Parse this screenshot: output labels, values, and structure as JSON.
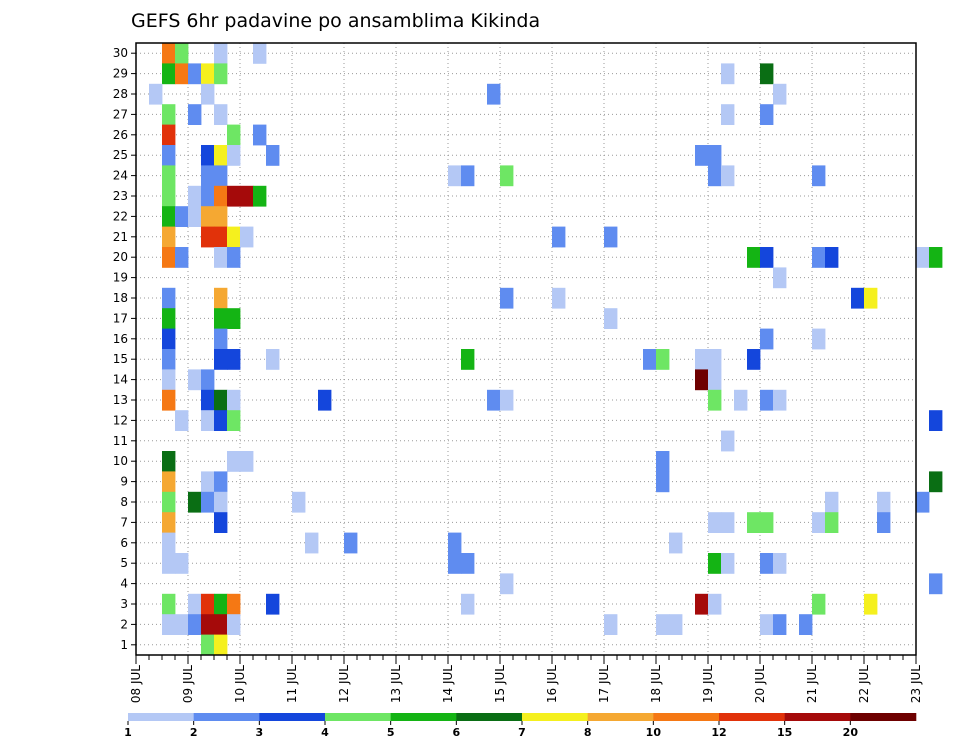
{
  "chart_data": {
    "type": "heatmap",
    "title": "GEFS 6hr padavine po ansamblima Kikinda",
    "xlabel": "",
    "ylabel": "",
    "x_tick_labels": [
      "08 JUL",
      "09 JUL",
      "10 JUL",
      "11 JUL",
      "12 JUL",
      "13 JUL",
      "14 JUL",
      "15 JUL",
      "16 JUL",
      "17 JUL",
      "18 JUL",
      "19 JUL",
      "20 JUL",
      "21 JUL",
      "22 JUL",
      "23 JUL"
    ],
    "y_tick_labels": [
      "1",
      "2",
      "3",
      "4",
      "5",
      "6",
      "7",
      "8",
      "9",
      "10",
      "11",
      "12",
      "13",
      "14",
      "15",
      "16",
      "17",
      "18",
      "19",
      "20",
      "21",
      "22",
      "23",
      "24",
      "25",
      "26",
      "27",
      "28",
      "29",
      "30"
    ],
    "time_steps_per_day": 4,
    "grid": true,
    "legend": {
      "placement": "bottom",
      "levels": [
        "1",
        "2",
        "3",
        "4",
        "5",
        "6",
        "7",
        "8",
        "10",
        "12",
        "15",
        "20"
      ],
      "colors": [
        "#b4c8f5",
        "#5f8cf0",
        "#1446dc",
        "#6ee664",
        "#14b414",
        "#0a6e14",
        "#f5f01e",
        "#f5a832",
        "#f57814",
        "#e1320a",
        "#a50a0a",
        "#6e0000"
      ]
    },
    "cells": [
      {
        "member": 30,
        "step": 2,
        "class": 9
      },
      {
        "member": 30,
        "step": 3,
        "class": 4
      },
      {
        "member": 30,
        "step": 6,
        "class": 1
      },
      {
        "member": 30,
        "step": 9,
        "class": 1
      },
      {
        "member": 29,
        "step": 2,
        "class": 5
      },
      {
        "member": 29,
        "step": 3,
        "class": 9
      },
      {
        "member": 29,
        "step": 4,
        "class": 2
      },
      {
        "member": 29,
        "step": 5,
        "class": 7
      },
      {
        "member": 29,
        "step": 6,
        "class": 4
      },
      {
        "member": 29,
        "step": 45,
        "class": 1
      },
      {
        "member": 29,
        "step": 48,
        "class": 6
      },
      {
        "member": 28,
        "step": 1,
        "class": 1
      },
      {
        "member": 28,
        "step": 5,
        "class": 1
      },
      {
        "member": 28,
        "step": 27,
        "class": 2
      },
      {
        "member": 28,
        "step": 49,
        "class": 1
      },
      {
        "member": 27,
        "step": 2,
        "class": 4
      },
      {
        "member": 27,
        "step": 4,
        "class": 2
      },
      {
        "member": 27,
        "step": 6,
        "class": 1
      },
      {
        "member": 27,
        "step": 45,
        "class": 1
      },
      {
        "member": 27,
        "step": 48,
        "class": 2
      },
      {
        "member": 26,
        "step": 2,
        "class": 10
      },
      {
        "member": 26,
        "step": 7,
        "class": 4
      },
      {
        "member": 26,
        "step": 9,
        "class": 2
      },
      {
        "member": 25,
        "step": 2,
        "class": 2
      },
      {
        "member": 25,
        "step": 5,
        "class": 3
      },
      {
        "member": 25,
        "step": 6,
        "class": 7
      },
      {
        "member": 25,
        "step": 7,
        "class": 1
      },
      {
        "member": 25,
        "step": 10,
        "class": 2
      },
      {
        "member": 25,
        "step": 43,
        "class": 2
      },
      {
        "member": 25,
        "step": 44,
        "class": 2
      },
      {
        "member": 24,
        "step": 2,
        "class": 4
      },
      {
        "member": 24,
        "step": 5,
        "class": 2
      },
      {
        "member": 24,
        "step": 6,
        "class": 2
      },
      {
        "member": 24,
        "step": 24,
        "class": 1
      },
      {
        "member": 24,
        "step": 25,
        "class": 2
      },
      {
        "member": 24,
        "step": 28,
        "class": 4
      },
      {
        "member": 24,
        "step": 44,
        "class": 2
      },
      {
        "member": 24,
        "step": 45,
        "class": 1
      },
      {
        "member": 24,
        "step": 52,
        "class": 2
      },
      {
        "member": 23,
        "step": 2,
        "class": 4
      },
      {
        "member": 23,
        "step": 4,
        "class": 1
      },
      {
        "member": 23,
        "step": 5,
        "class": 2
      },
      {
        "member": 23,
        "step": 6,
        "class": 9
      },
      {
        "member": 23,
        "step": 7,
        "class": 11
      },
      {
        "member": 23,
        "step": 8,
        "class": 11
      },
      {
        "member": 23,
        "step": 9,
        "class": 5
      },
      {
        "member": 22,
        "step": 2,
        "class": 5
      },
      {
        "member": 22,
        "step": 3,
        "class": 2
      },
      {
        "member": 22,
        "step": 4,
        "class": 1
      },
      {
        "member": 22,
        "step": 5,
        "class": 8
      },
      {
        "member": 22,
        "step": 6,
        "class": 8
      },
      {
        "member": 21,
        "step": 2,
        "class": 8
      },
      {
        "member": 21,
        "step": 5,
        "class": 10
      },
      {
        "member": 21,
        "step": 6,
        "class": 10
      },
      {
        "member": 21,
        "step": 7,
        "class": 7
      },
      {
        "member": 21,
        "step": 8,
        "class": 1
      },
      {
        "member": 21,
        "step": 32,
        "class": 2
      },
      {
        "member": 21,
        "step": 36,
        "class": 2
      },
      {
        "member": 20,
        "step": 2,
        "class": 9
      },
      {
        "member": 20,
        "step": 3,
        "class": 2
      },
      {
        "member": 20,
        "step": 6,
        "class": 1
      },
      {
        "member": 20,
        "step": 7,
        "class": 2
      },
      {
        "member": 20,
        "step": 47,
        "class": 5
      },
      {
        "member": 20,
        "step": 48,
        "class": 3
      },
      {
        "member": 20,
        "step": 52,
        "class": 2
      },
      {
        "member": 20,
        "step": 53,
        "class": 3
      },
      {
        "member": 20,
        "step": 60,
        "class": 1
      },
      {
        "member": 20,
        "step": 61,
        "class": 5
      },
      {
        "member": 19,
        "step": 49,
        "class": 1
      },
      {
        "member": 18,
        "step": 2,
        "class": 2
      },
      {
        "member": 18,
        "step": 6,
        "class": 8
      },
      {
        "member": 18,
        "step": 28,
        "class": 2
      },
      {
        "member": 18,
        "step": 32,
        "class": 1
      },
      {
        "member": 18,
        "step": 55,
        "class": 3
      },
      {
        "member": 18,
        "step": 56,
        "class": 7
      },
      {
        "member": 17,
        "step": 2,
        "class": 5
      },
      {
        "member": 17,
        "step": 6,
        "class": 5
      },
      {
        "member": 17,
        "step": 7,
        "class": 5
      },
      {
        "member": 17,
        "step": 36,
        "class": 1
      },
      {
        "member": 16,
        "step": 2,
        "class": 3
      },
      {
        "member": 16,
        "step": 6,
        "class": 2
      },
      {
        "member": 16,
        "step": 48,
        "class": 2
      },
      {
        "member": 16,
        "step": 52,
        "class": 1
      },
      {
        "member": 15,
        "step": 2,
        "class": 2
      },
      {
        "member": 15,
        "step": 6,
        "class": 3
      },
      {
        "member": 15,
        "step": 7,
        "class": 3
      },
      {
        "member": 15,
        "step": 10,
        "class": 1
      },
      {
        "member": 15,
        "step": 25,
        "class": 5
      },
      {
        "member": 15,
        "step": 39,
        "class": 2
      },
      {
        "member": 15,
        "step": 40,
        "class": 4
      },
      {
        "member": 15,
        "step": 43,
        "class": 1
      },
      {
        "member": 15,
        "step": 44,
        "class": 1
      },
      {
        "member": 15,
        "step": 47,
        "class": 3
      },
      {
        "member": 14,
        "step": 2,
        "class": 1
      },
      {
        "member": 14,
        "step": 4,
        "class": 1
      },
      {
        "member": 14,
        "step": 5,
        "class": 2
      },
      {
        "member": 14,
        "step": 43,
        "class": 12
      },
      {
        "member": 14,
        "step": 44,
        "class": 1
      },
      {
        "member": 13,
        "step": 2,
        "class": 9
      },
      {
        "member": 13,
        "step": 5,
        "class": 3
      },
      {
        "member": 13,
        "step": 6,
        "class": 6
      },
      {
        "member": 13,
        "step": 7,
        "class": 1
      },
      {
        "member": 13,
        "step": 14,
        "class": 3
      },
      {
        "member": 13,
        "step": 27,
        "class": 2
      },
      {
        "member": 13,
        "step": 28,
        "class": 1
      },
      {
        "member": 13,
        "step": 44,
        "class": 4
      },
      {
        "member": 13,
        "step": 46,
        "class": 1
      },
      {
        "member": 13,
        "step": 48,
        "class": 2
      },
      {
        "member": 13,
        "step": 49,
        "class": 1
      },
      {
        "member": 12,
        "step": 3,
        "class": 1
      },
      {
        "member": 12,
        "step": 5,
        "class": 1
      },
      {
        "member": 12,
        "step": 6,
        "class": 3
      },
      {
        "member": 12,
        "step": 7,
        "class": 4
      },
      {
        "member": 12,
        "step": 61,
        "class": 3
      },
      {
        "member": 11,
        "step": 45,
        "class": 1
      },
      {
        "member": 10,
        "step": 2,
        "class": 6
      },
      {
        "member": 10,
        "step": 7,
        "class": 1
      },
      {
        "member": 10,
        "step": 8,
        "class": 1
      },
      {
        "member": 10,
        "step": 40,
        "class": 2
      },
      {
        "member": 9,
        "step": 2,
        "class": 8
      },
      {
        "member": 9,
        "step": 5,
        "class": 1
      },
      {
        "member": 9,
        "step": 6,
        "class": 2
      },
      {
        "member": 9,
        "step": 40,
        "class": 2
      },
      {
        "member": 9,
        "step": 61,
        "class": 6
      },
      {
        "member": 8,
        "step": 2,
        "class": 4
      },
      {
        "member": 8,
        "step": 4,
        "class": 6
      },
      {
        "member": 8,
        "step": 5,
        "class": 2
      },
      {
        "member": 8,
        "step": 6,
        "class": 1
      },
      {
        "member": 8,
        "step": 12,
        "class": 1
      },
      {
        "member": 8,
        "step": 53,
        "class": 1
      },
      {
        "member": 8,
        "step": 57,
        "class": 1
      },
      {
        "member": 8,
        "step": 60,
        "class": 2
      },
      {
        "member": 7,
        "step": 2,
        "class": 8
      },
      {
        "member": 7,
        "step": 6,
        "class": 3
      },
      {
        "member": 7,
        "step": 44,
        "class": 1
      },
      {
        "member": 7,
        "step": 45,
        "class": 1
      },
      {
        "member": 7,
        "step": 47,
        "class": 4
      },
      {
        "member": 7,
        "step": 48,
        "class": 4
      },
      {
        "member": 7,
        "step": 52,
        "class": 1
      },
      {
        "member": 7,
        "step": 53,
        "class": 4
      },
      {
        "member": 7,
        "step": 57,
        "class": 2
      },
      {
        "member": 6,
        "step": 2,
        "class": 1
      },
      {
        "member": 6,
        "step": 13,
        "class": 1
      },
      {
        "member": 6,
        "step": 16,
        "class": 2
      },
      {
        "member": 6,
        "step": 24,
        "class": 2
      },
      {
        "member": 6,
        "step": 41,
        "class": 1
      },
      {
        "member": 5,
        "step": 2,
        "class": 1
      },
      {
        "member": 5,
        "step": 3,
        "class": 1
      },
      {
        "member": 5,
        "step": 24,
        "class": 2
      },
      {
        "member": 5,
        "step": 25,
        "class": 2
      },
      {
        "member": 5,
        "step": 44,
        "class": 5
      },
      {
        "member": 5,
        "step": 45,
        "class": 1
      },
      {
        "member": 5,
        "step": 48,
        "class": 2
      },
      {
        "member": 5,
        "step": 49,
        "class": 1
      },
      {
        "member": 4,
        "step": 28,
        "class": 1
      },
      {
        "member": 4,
        "step": 61,
        "class": 2
      },
      {
        "member": 3,
        "step": 2,
        "class": 4
      },
      {
        "member": 3,
        "step": 4,
        "class": 1
      },
      {
        "member": 3,
        "step": 5,
        "class": 10
      },
      {
        "member": 3,
        "step": 6,
        "class": 5
      },
      {
        "member": 3,
        "step": 7,
        "class": 9
      },
      {
        "member": 3,
        "step": 10,
        "class": 3
      },
      {
        "member": 3,
        "step": 25,
        "class": 1
      },
      {
        "member": 3,
        "step": 43,
        "class": 11
      },
      {
        "member": 3,
        "step": 44,
        "class": 1
      },
      {
        "member": 3,
        "step": 52,
        "class": 4
      },
      {
        "member": 3,
        "step": 56,
        "class": 7
      },
      {
        "member": 2,
        "step": 2,
        "class": 1
      },
      {
        "member": 2,
        "step": 3,
        "class": 1
      },
      {
        "member": 2,
        "step": 4,
        "class": 2
      },
      {
        "member": 2,
        "step": 5,
        "class": 11
      },
      {
        "member": 2,
        "step": 6,
        "class": 11
      },
      {
        "member": 2,
        "step": 7,
        "class": 1
      },
      {
        "member": 2,
        "step": 36,
        "class": 1
      },
      {
        "member": 2,
        "step": 40,
        "class": 1
      },
      {
        "member": 2,
        "step": 41,
        "class": 1
      },
      {
        "member": 2,
        "step": 48,
        "class": 1
      },
      {
        "member": 2,
        "step": 49,
        "class": 2
      },
      {
        "member": 2,
        "step": 51,
        "class": 2
      },
      {
        "member": 1,
        "step": 5,
        "class": 4
      },
      {
        "member": 1,
        "step": 6,
        "class": 7
      }
    ]
  }
}
